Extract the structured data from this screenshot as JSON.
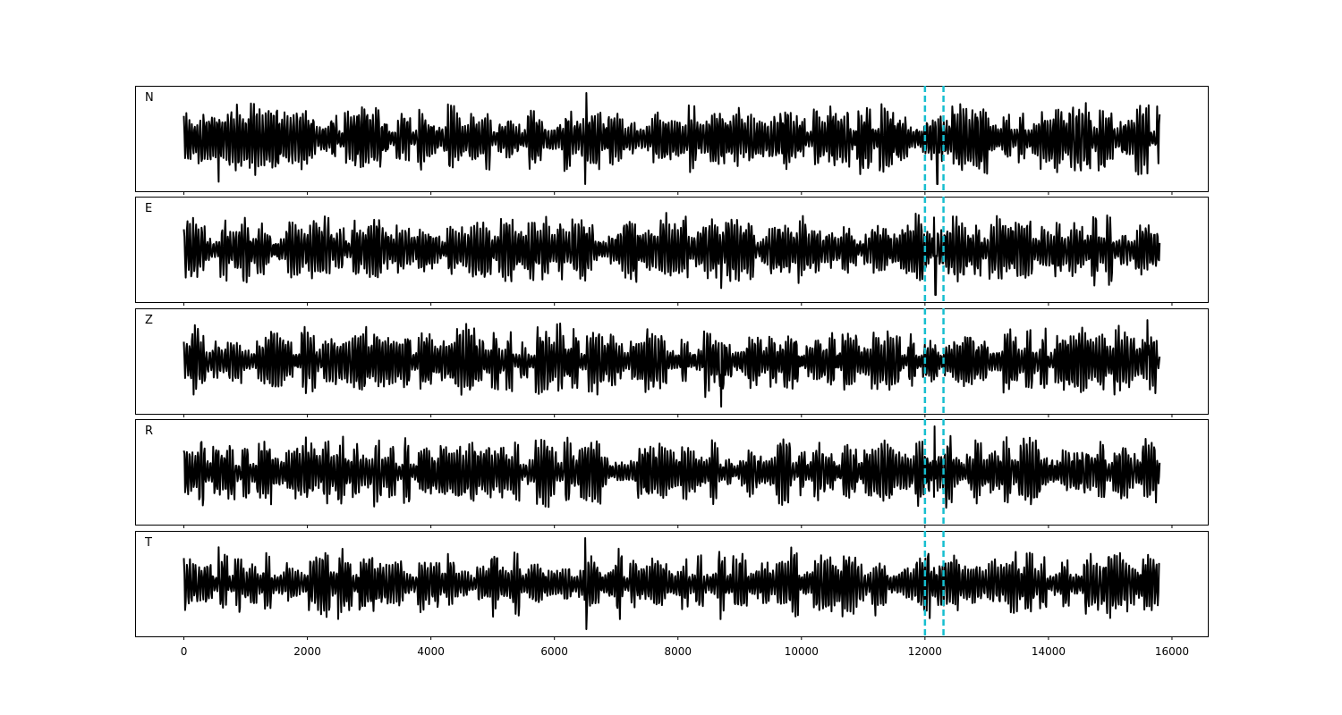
{
  "chart_data": {
    "type": "line",
    "title": "",
    "xlabel": "",
    "ylabel": "",
    "xlim": [
      -790,
      16580
    ],
    "x_ticks": [
      0,
      2000,
      4000,
      6000,
      8000,
      10000,
      12000,
      14000,
      16000
    ],
    "x_tick_labels": [
      "0",
      "2000",
      "4000",
      "6000",
      "8000",
      "10000",
      "12000",
      "14000",
      "16000"
    ],
    "sample_range": [
      0,
      15800
    ],
    "grid": false,
    "legend": "none",
    "line_color": "#000000",
    "marker_lines": {
      "x": [
        12000,
        12300
      ],
      "color": "#17becf",
      "style": "dashed"
    },
    "panels": [
      {
        "label": "N",
        "notable_peaks": [
          [
            560,
            -0.95
          ],
          [
            6500,
            -1.0
          ],
          [
            6520,
            1.0
          ],
          [
            12200,
            -1.0
          ]
        ]
      },
      {
        "label": "E",
        "notable_peaks": [
          [
            8700,
            -0.85
          ],
          [
            12150,
            0.7
          ],
          [
            12170,
            -1.0
          ]
        ]
      },
      {
        "label": "Z",
        "notable_peaks": [
          [
            8700,
            -1.0
          ],
          [
            15600,
            0.9
          ]
        ]
      },
      {
        "label": "R",
        "notable_peaks": [
          [
            12160,
            1.0
          ],
          [
            12150,
            -0.55
          ]
        ]
      },
      {
        "label": "T",
        "notable_peaks": [
          [
            560,
            0.8
          ],
          [
            6500,
            1.0
          ],
          [
            6520,
            -1.0
          ],
          [
            11200,
            -0.7
          ]
        ]
      }
    ]
  }
}
